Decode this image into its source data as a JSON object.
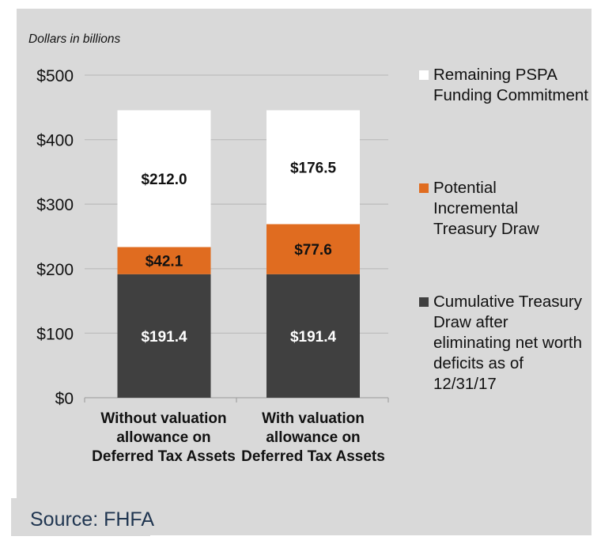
{
  "chart_data": {
    "type": "bar",
    "stacked": true,
    "subtitle": "Dollars in billions",
    "categories": [
      "Without valuation allowance on Deferred Tax Assets",
      "With valuation allowance on Deferred Tax Assets"
    ],
    "series": [
      {
        "name": "Cumulative Treasury Draw after eliminating net worth deficits as of 12/31/17",
        "values": [
          191.4,
          191.4
        ],
        "labels": [
          "$191.4",
          "$191.4"
        ],
        "color": "#404040",
        "label_color": "#ffffff"
      },
      {
        "name": "Potential Incremental Treasury Draw",
        "values": [
          42.1,
          77.6
        ],
        "labels": [
          "$42.1",
          "$77.6"
        ],
        "color": "#e06c20",
        "label_color": "#111111"
      },
      {
        "name": "Remaining PSPA Funding Commitment",
        "values": [
          212.0,
          176.5
        ],
        "labels": [
          "$212.0",
          "$176.5"
        ],
        "color": "#ffffff",
        "label_color": "#111111"
      }
    ],
    "ylim": [
      0,
      500
    ],
    "yticks": [
      0,
      100,
      200,
      300,
      400,
      500
    ],
    "ytick_labels": [
      "$0",
      "$100",
      "$200",
      "$300",
      "$400",
      "$500"
    ],
    "grid": true,
    "legend_position": "right",
    "source": "Source: FHFA"
  }
}
